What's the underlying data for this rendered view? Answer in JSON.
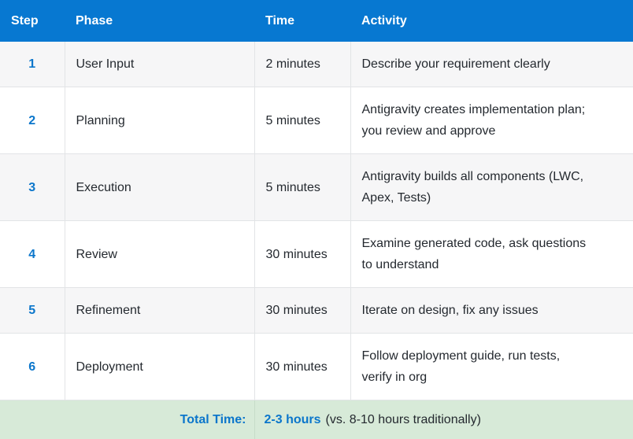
{
  "table": {
    "columns": [
      {
        "label": "Step"
      },
      {
        "label": "Phase"
      },
      {
        "label": "Time"
      },
      {
        "label": "Activity"
      }
    ],
    "rows": [
      {
        "step": "1",
        "phase": "User Input",
        "time": "2 minutes",
        "activity": "Describe your requirement clearly"
      },
      {
        "step": "2",
        "phase": "Planning",
        "time": "5 minutes",
        "activity": "Antigravity creates implementation plan;\nyou review and approve"
      },
      {
        "step": "3",
        "phase": "Execution",
        "time": "5 minutes",
        "activity": "Antigravity builds all components (LWC,\nApex, Tests)"
      },
      {
        "step": "4",
        "phase": "Review",
        "time": "30 minutes",
        "activity": "Examine generated code, ask questions\nto understand"
      },
      {
        "step": "5",
        "phase": "Refinement",
        "time": "30 minutes",
        "activity": "Iterate on design, fix any issues"
      },
      {
        "step": "6",
        "phase": "Deployment",
        "time": "30 minutes",
        "activity": "Follow deployment guide, run tests,\nverify in org"
      }
    ],
    "footer": {
      "label": "Total Time:",
      "value_bold": "2-3 hours",
      "value_rest": "(vs. 8-10 hours traditionally)"
    },
    "colors": {
      "header_bg": "#0778d1",
      "header_text": "#ffffff",
      "accent_blue": "#0b76cb",
      "row_alt_bg": "#f6f6f7",
      "footer_bg": "#d7ead8",
      "footer_divider": "#c6dcc9",
      "border": "#e2e4e6",
      "body_text": "#24292f"
    }
  }
}
